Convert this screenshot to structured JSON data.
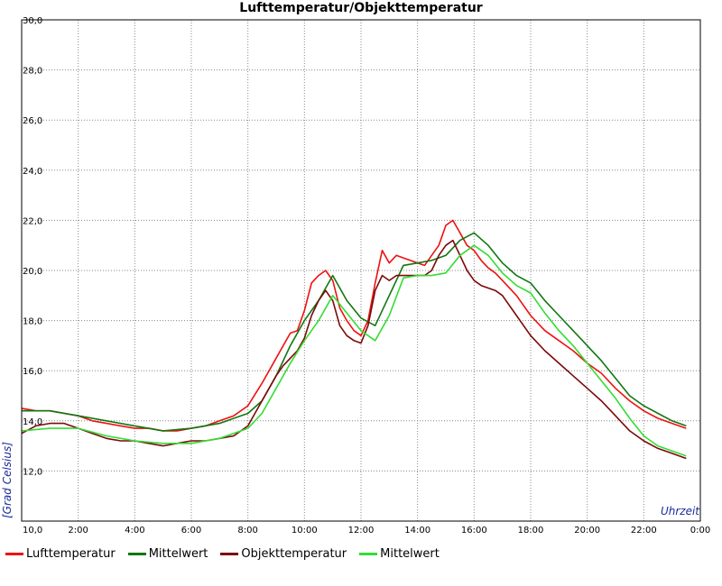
{
  "chart_data": {
    "type": "line",
    "title": "Lufttemperatur/Objekttemperatur",
    "xlabel": "Uhrzeit",
    "ylabel": "[Grad Celsius]",
    "x_tick_labels": [
      "10,0",
      "2:00",
      "4:00",
      "6:00",
      "8:00",
      "10:00",
      "12:00",
      "14:00",
      "16:00",
      "18:00",
      "20:00",
      "22:00",
      "0:00"
    ],
    "y_tick_labels": [
      "30,0",
      "28,0",
      "26,0",
      "24,0",
      "22,0",
      "20,0",
      "18,0",
      "16,0",
      "14,0",
      "12,0"
    ],
    "xlim": [
      0,
      24
    ],
    "ylim": [
      10,
      30
    ],
    "grid": true,
    "legend_position": "bottom",
    "series": [
      {
        "name": "Lufttemperatur",
        "color": "#ee1111",
        "x": [
          0,
          0.5,
          1,
          1.5,
          2,
          2.5,
          3,
          3.5,
          4,
          4.5,
          5,
          5.5,
          6,
          6.5,
          7,
          7.5,
          8,
          8.5,
          9,
          9.25,
          9.5,
          9.75,
          10,
          10.25,
          10.5,
          10.75,
          11,
          11.25,
          11.5,
          11.75,
          12,
          12.25,
          12.5,
          12.75,
          13,
          13.25,
          13.5,
          13.75,
          14,
          14.25,
          14.5,
          14.75,
          15,
          15.25,
          15.5,
          15.75,
          16,
          16.25,
          16.5,
          16.75,
          17,
          17.5,
          18,
          18.5,
          19,
          19.5,
          20,
          20.5,
          21,
          21.5,
          22,
          22.5,
          23,
          23.5
        ],
        "y": [
          14.5,
          14.4,
          14.4,
          14.3,
          14.2,
          14.0,
          13.9,
          13.8,
          13.7,
          13.7,
          13.6,
          13.6,
          13.7,
          13.8,
          14.0,
          14.2,
          14.6,
          15.5,
          16.5,
          17.0,
          17.5,
          17.6,
          18.4,
          19.5,
          19.8,
          20.0,
          19.6,
          18.5,
          18.0,
          17.6,
          17.4,
          18.0,
          19.5,
          20.8,
          20.3,
          20.6,
          20.5,
          20.4,
          20.3,
          20.2,
          20.6,
          21.0,
          21.8,
          22.0,
          21.5,
          21.0,
          20.8,
          20.4,
          20.1,
          19.9,
          19.6,
          19.0,
          18.2,
          17.6,
          17.2,
          16.8,
          16.3,
          15.9,
          15.3,
          14.8,
          14.4,
          14.1,
          13.9,
          13.7
        ]
      },
      {
        "name": "Mittelwert",
        "color": "#117711",
        "x": [
          0,
          1,
          2,
          3,
          4,
          5,
          6,
          7,
          8,
          8.5,
          9,
          9.5,
          10,
          10.5,
          11,
          11.5,
          12,
          12.5,
          13,
          13.5,
          14,
          14.5,
          15,
          15.5,
          16,
          16.5,
          17,
          17.5,
          18,
          18.5,
          19,
          19.5,
          20,
          20.5,
          21,
          21.5,
          22,
          22.5,
          23,
          23.5
        ],
        "y": [
          14.4,
          14.4,
          14.2,
          14.0,
          13.8,
          13.6,
          13.7,
          13.9,
          14.3,
          14.8,
          15.8,
          17.0,
          18.0,
          18.8,
          19.8,
          18.8,
          18.1,
          17.8,
          19.0,
          20.2,
          20.3,
          20.4,
          20.6,
          21.2,
          21.5,
          21.0,
          20.3,
          19.8,
          19.5,
          18.8,
          18.2,
          17.6,
          17.0,
          16.4,
          15.7,
          15.0,
          14.6,
          14.3,
          14.0,
          13.8
        ]
      },
      {
        "name": "Objekttemperatur",
        "color": "#7a0a0a",
        "x": [
          0,
          0.5,
          1,
          1.5,
          2,
          2.5,
          3,
          3.5,
          4,
          4.5,
          5,
          5.5,
          6,
          6.5,
          7,
          7.5,
          8,
          8.5,
          9,
          9.25,
          9.5,
          9.75,
          10,
          10.25,
          10.5,
          10.75,
          11,
          11.25,
          11.5,
          11.75,
          12,
          12.25,
          12.5,
          12.75,
          13,
          13.25,
          13.5,
          13.75,
          14,
          14.25,
          14.5,
          14.75,
          15,
          15.25,
          15.5,
          15.75,
          16,
          16.25,
          16.5,
          16.75,
          17,
          17.5,
          18,
          18.5,
          19,
          19.5,
          20,
          20.5,
          21,
          21.5,
          22,
          22.5,
          23,
          23.5
        ],
        "y": [
          13.5,
          13.8,
          13.9,
          13.9,
          13.7,
          13.5,
          13.3,
          13.2,
          13.2,
          13.1,
          13.0,
          13.1,
          13.2,
          13.2,
          13.3,
          13.4,
          13.8,
          14.8,
          15.8,
          16.2,
          16.5,
          16.8,
          17.3,
          18.2,
          18.8,
          19.2,
          18.8,
          17.8,
          17.4,
          17.2,
          17.1,
          17.8,
          19.2,
          19.8,
          19.6,
          19.8,
          19.8,
          19.8,
          19.8,
          19.8,
          20.0,
          20.6,
          21.0,
          21.2,
          20.6,
          20.0,
          19.6,
          19.4,
          19.3,
          19.2,
          19.0,
          18.2,
          17.4,
          16.8,
          16.3,
          15.8,
          15.3,
          14.8,
          14.2,
          13.6,
          13.2,
          12.9,
          12.7,
          12.5
        ]
      },
      {
        "name": "Mittelwert",
        "color": "#33dd33",
        "x": [
          0,
          1,
          2,
          3,
          4,
          5,
          6,
          7,
          8,
          8.5,
          9,
          9.5,
          10,
          10.5,
          11,
          11.5,
          12,
          12.5,
          13,
          13.5,
          14,
          14.5,
          15,
          15.5,
          16,
          16.5,
          17,
          17.5,
          18,
          18.5,
          19,
          19.5,
          20,
          20.5,
          21,
          21.5,
          22,
          22.5,
          23,
          23.5
        ],
        "y": [
          13.6,
          13.7,
          13.7,
          13.4,
          13.2,
          13.1,
          13.1,
          13.3,
          13.7,
          14.3,
          15.3,
          16.3,
          17.2,
          18.0,
          19.0,
          18.3,
          17.6,
          17.2,
          18.2,
          19.7,
          19.8,
          19.8,
          19.9,
          20.6,
          21.0,
          20.6,
          19.9,
          19.4,
          19.1,
          18.3,
          17.6,
          17.0,
          16.3,
          15.6,
          14.9,
          14.1,
          13.4,
          13.0,
          12.8,
          12.6
        ]
      }
    ]
  }
}
